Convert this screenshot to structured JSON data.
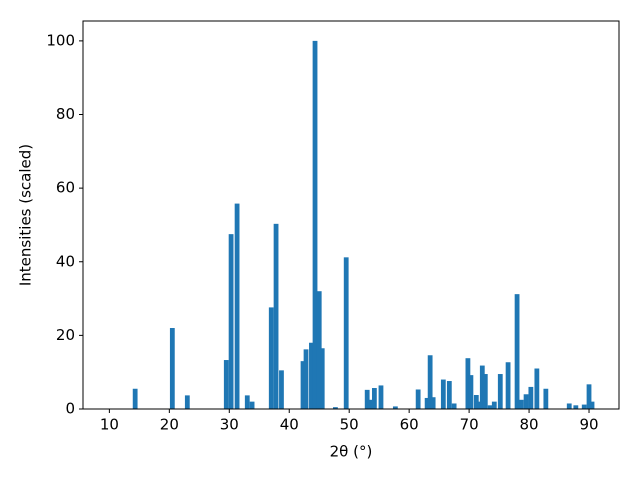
{
  "chart_data": {
    "type": "bar",
    "x_label": "2θ (°)",
    "y_label": "Intensities (scaled)",
    "color": "#1f77b4",
    "bar_width": 0.8,
    "x": [
      14.3,
      20.5,
      23,
      29.5,
      30.3,
      31.3,
      33,
      33.8,
      37,
      37.8,
      38.7,
      42.3,
      42.8,
      43.7,
      44.3,
      45,
      45.5,
      47.7,
      49.5,
      53,
      53.5,
      54.2,
      55.3,
      57.7,
      61.5,
      63,
      63.5,
      64,
      65.7,
      66.7,
      67.5,
      69.8,
      70.3,
      71.2,
      71.8,
      72.2,
      72.7,
      73.5,
      74.2,
      75.2,
      76.5,
      78,
      78.7,
      79.5,
      80.3,
      81.3,
      82.8,
      86.7,
      87.8,
      89.2,
      90,
      90.5
    ],
    "values": [
      5.5,
      22,
      3.7,
      13.3,
      47.5,
      55.8,
      3.7,
      2,
      27.6,
      50.3,
      10.5,
      13,
      16.2,
      18,
      100,
      32,
      16.5,
      0.5,
      41.2,
      5.2,
      2.5,
      5.7,
      6.4,
      0.7,
      5.3,
      3,
      14.6,
      3.2,
      8,
      7.6,
      1.5,
      13.8,
      9.2,
      3.8,
      2,
      11.8,
      9.5,
      1,
      2,
      9.5,
      12.7,
      31.2,
      2.5,
      4,
      6,
      11,
      5.5,
      1.5,
      1,
      1.2,
      6.7,
      2
    ],
    "xlim": [
      5.6,
      95
    ],
    "ylim": [
      0,
      105.4
    ],
    "xticks": [
      10,
      20,
      30,
      40,
      50,
      60,
      70,
      80,
      90
    ],
    "yticks": [
      0,
      20,
      40,
      60,
      80,
      100
    ]
  }
}
